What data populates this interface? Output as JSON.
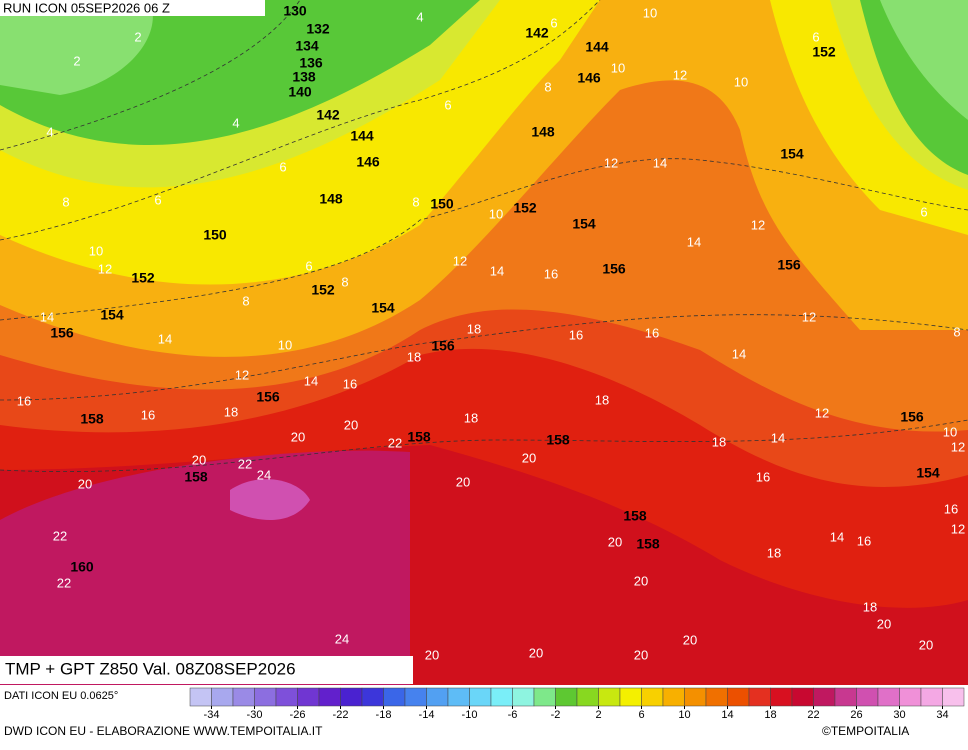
{
  "header": {
    "run": "RUN ICON 05SEP2026 06 Z",
    "title": "TMP + GPT Z850 Val. 08Z08SEP2026"
  },
  "footer": {
    "source": "DATI ICON EU 0.0625°",
    "credit": "DWD ICON EU - ELABORAZIONE WWW.TEMPOITALIA.IT",
    "copyright": "©TEMPOITALIA"
  },
  "colorbar": {
    "lim": [
      -36,
      36
    ],
    "ticks": [
      -34,
      -30,
      -26,
      -22,
      -18,
      -14,
      -10,
      -6,
      -2,
      2,
      6,
      10,
      14,
      18,
      22,
      26,
      30,
      34
    ],
    "colors": [
      "#c4c4f4",
      "#a8a8ee",
      "#9a8ae6",
      "#8c6ee0",
      "#7e50da",
      "#7036d2",
      "#6220cc",
      "#4a22d0",
      "#3c36da",
      "#3a66e8",
      "#4682ee",
      "#52a0f2",
      "#5ebcf6",
      "#6ad6f8",
      "#7aeef8",
      "#8ef4e0",
      "#7ee88a",
      "#5ec832",
      "#88d820",
      "#c8e810",
      "#f4f000",
      "#f8d000",
      "#f8b000",
      "#f49000",
      "#f07000",
      "#ec5000",
      "#e43020",
      "#d81020",
      "#c80830",
      "#c01860",
      "#c83890",
      "#d050b0",
      "#e070c8",
      "#f090d8",
      "#f4a8e4",
      "#f8c0ec"
    ]
  },
  "gpt_labels": [
    130,
    132,
    134,
    136,
    138,
    140,
    142,
    144,
    146,
    148,
    150,
    152,
    154,
    156,
    158,
    158,
    160,
    152,
    154,
    150,
    152,
    148,
    142,
    144,
    146,
    154,
    156,
    154,
    156,
    152,
    156,
    156,
    158,
    158,
    158,
    158,
    156,
    154
  ],
  "tmp_labels": [
    4,
    6,
    10,
    2,
    6,
    2,
    10,
    12,
    10,
    4,
    4,
    6,
    8,
    6,
    8,
    6,
    8,
    10,
    12,
    14,
    12,
    14,
    6,
    10,
    12,
    6,
    8,
    8,
    12,
    14,
    16,
    14,
    14,
    10,
    12,
    14,
    16,
    18,
    16,
    18,
    16,
    14,
    12,
    8,
    16,
    16,
    18,
    18,
    18,
    12,
    20,
    20,
    22,
    20,
    18,
    14,
    10,
    12,
    20,
    22,
    24,
    20,
    20,
    16,
    22,
    22,
    20,
    18,
    14,
    16,
    16,
    12,
    20,
    18,
    20,
    24,
    20,
    20,
    20,
    20,
    20
  ]
}
